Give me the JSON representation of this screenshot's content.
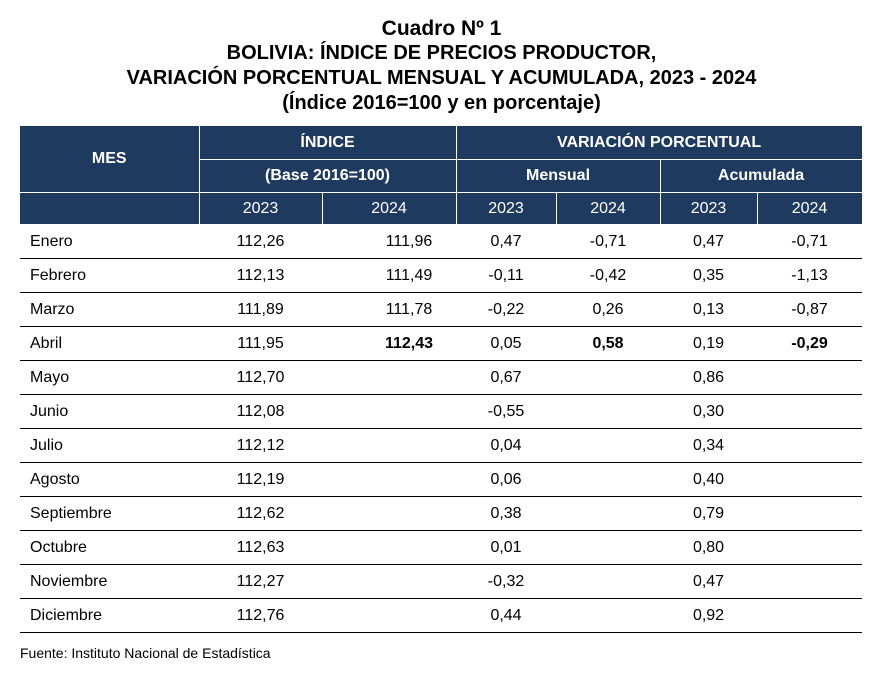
{
  "titles": {
    "line1": "Cuadro Nº 1",
    "line2": "BOLIVIA: ÍNDICE DE PRECIOS PRODUCTOR,",
    "line3": "VARIACIÓN PORCENTUAL MENSUAL Y ACUMULADA, 2023 - 2024",
    "line4": "(Índice 2016=100 y en porcentaje)"
  },
  "header": {
    "mes": "MES",
    "indice": "ÍNDICE",
    "base": "(Base 2016=100)",
    "variacion": "VARIACIÓN PORCENTUAL",
    "mensual": "Mensual",
    "acumulada": "Acumulada",
    "years": [
      "2023",
      "2024",
      "2023",
      "2024",
      "2023",
      "2024"
    ]
  },
  "rows": [
    {
      "mes": "Enero",
      "i23": "112,26",
      "i24": "111,96",
      "m23": "0,47",
      "m24": "-0,71",
      "a23": "0,47",
      "a24": "-0,71"
    },
    {
      "mes": "Febrero",
      "i23": "112,13",
      "i24": "111,49",
      "m23": "-0,11",
      "m24": "-0,42",
      "a23": "0,35",
      "a24": "-1,13"
    },
    {
      "mes": "Marzo",
      "i23": "111,89",
      "i24": "111,78",
      "m23": "-0,22",
      "m24": "0,26",
      "a23": "0,13",
      "a24": "-0,87"
    },
    {
      "mes": "Abril",
      "i23": "111,95",
      "i24": "112,43",
      "m23": "0,05",
      "m24": "0,58",
      "a23": "0,19",
      "a24": "-0,29"
    },
    {
      "mes": "Mayo",
      "i23": "112,70",
      "i24": "",
      "m23": "0,67",
      "m24": "",
      "a23": "0,86",
      "a24": ""
    },
    {
      "mes": "Junio",
      "i23": "112,08",
      "i24": "",
      "m23": "-0,55",
      "m24": "",
      "a23": "0,30",
      "a24": ""
    },
    {
      "mes": "Julio",
      "i23": "112,12",
      "i24": "",
      "m23": "0,04",
      "m24": "",
      "a23": "0,34",
      "a24": ""
    },
    {
      "mes": "Agosto",
      "i23": "112,19",
      "i24": "",
      "m23": "0,06",
      "m24": "",
      "a23": "0,40",
      "a24": ""
    },
    {
      "mes": "Septiembre",
      "i23": "112,62",
      "i24": "",
      "m23": "0,38",
      "m24": "",
      "a23": "0,79",
      "a24": ""
    },
    {
      "mes": "Octubre",
      "i23": "112,63",
      "i24": "",
      "m23": "0,01",
      "m24": "",
      "a23": "0,80",
      "a24": ""
    },
    {
      "mes": "Noviembre",
      "i23": "112,27",
      "i24": "",
      "m23": "-0,32",
      "m24": "",
      "a23": "0,47",
      "a24": ""
    },
    {
      "mes": "Diciembre",
      "i23": "112,76",
      "i24": "",
      "m23": "0,44",
      "m24": "",
      "a23": "0,92",
      "a24": ""
    }
  ],
  "source": "Fuente: Instituto Nacional de Estadística",
  "colors": {
    "header_bg": "#1f3a5f",
    "header_text": "#ffffff"
  }
}
